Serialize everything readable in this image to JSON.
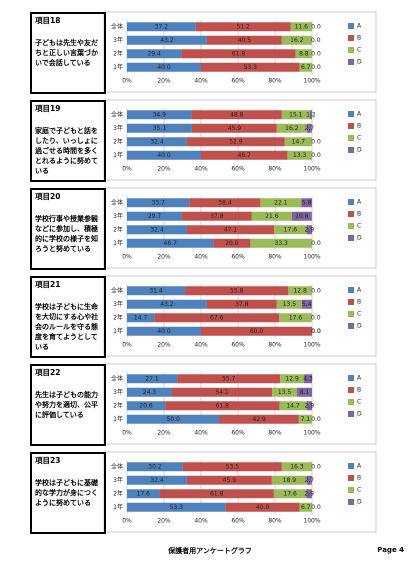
{
  "chart_data": [
    {
      "type": "bar",
      "title": "項目18",
      "description": "子どもは先生や友だちと正しい言葉づかいで会話している",
      "categories": [
        "全体",
        "3年",
        "2年",
        "1年"
      ],
      "xlim": [
        0,
        100
      ],
      "xticks": [
        {
          "value": 0,
          "label": "0%"
        },
        {
          "value": 20,
          "label": "20%"
        },
        {
          "value": 40,
          "label": "40%"
        },
        {
          "value": 60,
          "label": "60%"
        },
        {
          "value": 80,
          "label": "80%"
        },
        {
          "value": 100,
          "label": "100%"
        }
      ],
      "series": [
        {
          "name": "A",
          "color": "#4f81bd",
          "values": [
            37.2,
            43.2,
            29.4,
            40
          ],
          "value_labels": [
            "37.2",
            "43.2",
            "29.4",
            "40.0"
          ]
        },
        {
          "name": "B",
          "color": "#c0504d",
          "values": [
            51.2,
            40.5,
            61.8,
            53.3
          ],
          "value_labels": [
            "51.2",
            "40.5",
            "61.8",
            "53.3"
          ]
        },
        {
          "name": "C",
          "color": "#9bbb59",
          "values": [
            11.6,
            16.2,
            8.8,
            6.7
          ],
          "value_labels": [
            "11.6",
            "16.2",
            "8.8",
            "6.7"
          ]
        },
        {
          "name": "D",
          "color": "#8064a2",
          "values": [
            0,
            0,
            0,
            0
          ],
          "value_labels": [
            "0.0",
            "0.0",
            "0.0",
            "0.0"
          ]
        }
      ]
    },
    {
      "type": "bar",
      "title": "項目19",
      "description": "家庭で子どもと話をしたり、いっしょに過ごせる時間を多くとれるように努めている",
      "categories": [
        "全体",
        "3年",
        "2年",
        "1年"
      ],
      "xlim": [
        0,
        100
      ],
      "xticks": [
        {
          "value": 0,
          "label": "0%"
        },
        {
          "value": 20,
          "label": "20%"
        },
        {
          "value": 40,
          "label": "40%"
        },
        {
          "value": 60,
          "label": "60%"
        },
        {
          "value": 80,
          "label": "80%"
        },
        {
          "value": 100,
          "label": "100%"
        }
      ],
      "series": [
        {
          "name": "A",
          "color": "#4f81bd",
          "values": [
            34.9,
            35.1,
            32.4,
            40
          ],
          "value_labels": [
            "34.9",
            "35.1",
            "32.4",
            "40.0"
          ]
        },
        {
          "name": "B",
          "color": "#c0504d",
          "values": [
            48.8,
            45.9,
            52.9,
            46.7
          ],
          "value_labels": [
            "48.8",
            "45.9",
            "52.9",
            "46.7"
          ]
        },
        {
          "name": "C",
          "color": "#9bbb59",
          "values": [
            15.1,
            16.2,
            14.7,
            13.3
          ],
          "value_labels": [
            "15.1",
            "16.2",
            "14.7",
            "13.3"
          ]
        },
        {
          "name": "D",
          "color": "#8064a2",
          "values": [
            1.2,
            2.7,
            0,
            0
          ],
          "value_labels": [
            "1.2",
            "2.7",
            "0.0",
            "0.0"
          ]
        }
      ]
    },
    {
      "type": "bar",
      "title": "項目20",
      "description": "学校行事や授業参観などに参加し、積極的に学校の様子を知ろうと努めている",
      "categories": [
        "全体",
        "3年",
        "2年",
        "1年"
      ],
      "xlim": [
        0,
        100
      ],
      "xticks": [
        {
          "value": 0,
          "label": "0%"
        },
        {
          "value": 20,
          "label": "20%"
        },
        {
          "value": 40,
          "label": "40%"
        },
        {
          "value": 60,
          "label": "60%"
        },
        {
          "value": 80,
          "label": "80%"
        },
        {
          "value": 100,
          "label": "100%"
        }
      ],
      "series": [
        {
          "name": "A",
          "color": "#4f81bd",
          "values": [
            33.7,
            29.7,
            32.4,
            46.7
          ],
          "value_labels": [
            "33.7",
            "29.7",
            "32.4",
            "46.7"
          ]
        },
        {
          "name": "B",
          "color": "#c0504d",
          "values": [
            38.4,
            37.8,
            47.1,
            20
          ],
          "value_labels": [
            "38.4",
            "37.8",
            "47.1",
            "20.0"
          ]
        },
        {
          "name": "C",
          "color": "#9bbb59",
          "values": [
            22.1,
            21.6,
            17.6,
            33.3
          ],
          "value_labels": [
            "22.1",
            "21.6",
            "17.6",
            "33.3"
          ]
        },
        {
          "name": "D",
          "color": "#8064a2",
          "values": [
            5.8,
            10.8,
            2.9,
            0
          ],
          "value_labels": [
            "5.8",
            "10.8",
            "2.9",
            "0.0"
          ]
        }
      ]
    },
    {
      "type": "bar",
      "title": "項目21",
      "description": "学校は子どもに生命を大切にする心や社会のルールを守る態度を育てようとしている",
      "categories": [
        "全体",
        "3年",
        "2年",
        "1年"
      ],
      "xlim": [
        0,
        100
      ],
      "xticks": [
        {
          "value": 0,
          "label": "0%"
        },
        {
          "value": 20,
          "label": "20%"
        },
        {
          "value": 40,
          "label": "40%"
        },
        {
          "value": 60,
          "label": "60%"
        },
        {
          "value": 80,
          "label": "80%"
        },
        {
          "value": 100,
          "label": "100%"
        }
      ],
      "series": [
        {
          "name": "A",
          "color": "#4f81bd",
          "values": [
            31.4,
            43.2,
            14.7,
            40
          ],
          "value_labels": [
            "31.4",
            "43.2",
            "14.7",
            "40.0"
          ]
        },
        {
          "name": "B",
          "color": "#c0504d",
          "values": [
            55.8,
            37.8,
            67.6,
            60
          ],
          "value_labels": [
            "55.8",
            "37.8",
            "67.6",
            "60.0"
          ]
        },
        {
          "name": "C",
          "color": "#9bbb59",
          "values": [
            12.8,
            13.5,
            17.6,
            0
          ],
          "value_labels": [
            "12.8",
            "13.5",
            "17.6",
            "0.0"
          ]
        },
        {
          "name": "D",
          "color": "#8064a2",
          "values": [
            0,
            5.4,
            0,
            0
          ],
          "value_labels": [
            "0.0",
            "5.4",
            "0.0",
            "0.0"
          ]
        }
      ]
    },
    {
      "type": "bar",
      "title": "項目22",
      "description": "先生は子どもの能力や努力を適切、公平に評価している",
      "categories": [
        "全体",
        "3年",
        "2年",
        "1年"
      ],
      "xlim": [
        0,
        100
      ],
      "xticks": [
        {
          "value": 0,
          "label": "0%"
        },
        {
          "value": 20,
          "label": "20%"
        },
        {
          "value": 40,
          "label": "40%"
        },
        {
          "value": 60,
          "label": "60%"
        },
        {
          "value": 80,
          "label": "80%"
        },
        {
          "value": 100,
          "label": "100%"
        }
      ],
      "series": [
        {
          "name": "A",
          "color": "#4f81bd",
          "values": [
            27.1,
            24.3,
            20.6,
            50
          ],
          "value_labels": [
            "27.1",
            "24.3",
            "20.6",
            "50.0"
          ]
        },
        {
          "name": "B",
          "color": "#c0504d",
          "values": [
            55.7,
            54.1,
            61.8,
            42.9
          ],
          "value_labels": [
            "55.7",
            "54.1",
            "61.8",
            "42.9"
          ]
        },
        {
          "name": "C",
          "color": "#9bbb59",
          "values": [
            12.9,
            13.5,
            14.7,
            7.1
          ],
          "value_labels": [
            "12.9",
            "13.5",
            "14.7",
            "7.1"
          ]
        },
        {
          "name": "D",
          "color": "#8064a2",
          "values": [
            4.3,
            8.1,
            2.9,
            0
          ],
          "value_labels": [
            "4.3",
            "8.1",
            "2.9",
            "0.0"
          ]
        }
      ]
    },
    {
      "type": "bar",
      "title": "項目23",
      "description": "学校は子どもに基礎的な学力が身につくように努めている",
      "categories": [
        "全体",
        "3年",
        "2年",
        "1年"
      ],
      "xlim": [
        0,
        100
      ],
      "xticks": [
        {
          "value": 0,
          "label": "0%"
        },
        {
          "value": 20,
          "label": "20%"
        },
        {
          "value": 40,
          "label": "40%"
        },
        {
          "value": 60,
          "label": "60%"
        },
        {
          "value": 80,
          "label": "80%"
        },
        {
          "value": 100,
          "label": "100%"
        }
      ],
      "series": [
        {
          "name": "A",
          "color": "#4f81bd",
          "values": [
            30.2,
            32.4,
            17.6,
            53.3
          ],
          "value_labels": [
            "30.2",
            "32.4",
            "17.6",
            "53.3"
          ]
        },
        {
          "name": "B",
          "color": "#c0504d",
          "values": [
            53.5,
            45.9,
            61.8,
            40
          ],
          "value_labels": [
            "53.5",
            "45.9",
            "61.8",
            "40.0"
          ]
        },
        {
          "name": "C",
          "color": "#9bbb59",
          "values": [
            16.3,
            18.9,
            17.6,
            6.7
          ],
          "value_labels": [
            "16.3",
            "18.9",
            "17.6",
            "6.7"
          ]
        },
        {
          "name": "D",
          "color": "#8064a2",
          "values": [
            0,
            2.7,
            2.9,
            0
          ],
          "value_labels": [
            "0.0",
            "2.7",
            "2.9",
            "0.0"
          ]
        }
      ]
    }
  ],
  "footer": {
    "title": "保護者用アンケートグラフ",
    "page": "Page 4"
  }
}
